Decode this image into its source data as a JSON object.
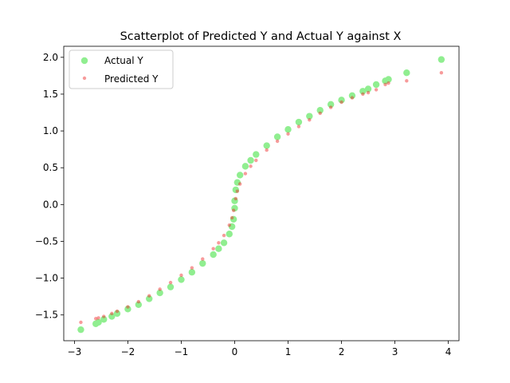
{
  "chart_data": {
    "type": "scatter",
    "title": "Scatterplot of Predicted Y and Actual Y against X",
    "xlabel": "",
    "ylabel": "",
    "xlim": [
      -3.2,
      4.2
    ],
    "ylim": [
      -1.85,
      2.15
    ],
    "xticks": [
      -3,
      -2,
      -1,
      0,
      1,
      2,
      3,
      4
    ],
    "yticks": [
      -1.5,
      -1.0,
      -0.5,
      0.0,
      0.5,
      1.0,
      1.5,
      2.0
    ],
    "xtick_labels": [
      "−3",
      "−2",
      "−1",
      "0",
      "1",
      "2",
      "3",
      "4"
    ],
    "ytick_labels": [
      "−1.5",
      "−1.0",
      "−0.5",
      "0.0",
      "0.5",
      "1.0",
      "1.5",
      "2.0"
    ],
    "grid": false,
    "legend_position": "top-left",
    "series": [
      {
        "name": "Actual Y",
        "color": "#90EE90",
        "marker": "large",
        "points": [
          [
            -2.88,
            -1.7
          ],
          [
            -2.6,
            -1.62
          ],
          [
            -2.55,
            -1.6
          ],
          [
            -2.45,
            -1.56
          ],
          [
            -2.3,
            -1.52
          ],
          [
            -2.2,
            -1.48
          ],
          [
            -2.0,
            -1.42
          ],
          [
            -1.8,
            -1.36
          ],
          [
            -1.6,
            -1.28
          ],
          [
            -1.4,
            -1.2
          ],
          [
            -1.2,
            -1.12
          ],
          [
            -1.0,
            -1.02
          ],
          [
            -0.8,
            -0.92
          ],
          [
            -0.6,
            -0.8
          ],
          [
            -0.4,
            -0.68
          ],
          [
            -0.3,
            -0.6
          ],
          [
            -0.2,
            -0.52
          ],
          [
            -0.1,
            -0.4
          ],
          [
            -0.05,
            -0.3
          ],
          [
            -0.02,
            -0.2
          ],
          [
            0.0,
            -0.05
          ],
          [
            0.0,
            0.05
          ],
          [
            0.02,
            0.2
          ],
          [
            0.05,
            0.3
          ],
          [
            0.1,
            0.4
          ],
          [
            0.2,
            0.52
          ],
          [
            0.3,
            0.6
          ],
          [
            0.4,
            0.68
          ],
          [
            0.6,
            0.8
          ],
          [
            0.8,
            0.92
          ],
          [
            1.0,
            1.02
          ],
          [
            1.2,
            1.12
          ],
          [
            1.4,
            1.2
          ],
          [
            1.6,
            1.28
          ],
          [
            1.8,
            1.36
          ],
          [
            2.0,
            1.42
          ],
          [
            2.2,
            1.48
          ],
          [
            2.4,
            1.54
          ],
          [
            2.5,
            1.57
          ],
          [
            2.65,
            1.63
          ],
          [
            2.82,
            1.68
          ],
          [
            2.88,
            1.7
          ],
          [
            3.22,
            1.79
          ],
          [
            3.87,
            1.97
          ]
        ]
      },
      {
        "name": "Predicted Y",
        "color": "#EE2222",
        "marker": "small",
        "points": [
          [
            -2.88,
            -1.6
          ],
          [
            -2.6,
            -1.55
          ],
          [
            -2.55,
            -1.54
          ],
          [
            -2.45,
            -1.52
          ],
          [
            -2.3,
            -1.48
          ],
          [
            -2.2,
            -1.45
          ],
          [
            -2.0,
            -1.39
          ],
          [
            -1.8,
            -1.32
          ],
          [
            -1.6,
            -1.24
          ],
          [
            -1.4,
            -1.15
          ],
          [
            -1.2,
            -1.06
          ],
          [
            -1.0,
            -0.96
          ],
          [
            -0.8,
            -0.86
          ],
          [
            -0.6,
            -0.74
          ],
          [
            -0.4,
            -0.6
          ],
          [
            -0.3,
            -0.52
          ],
          [
            -0.2,
            -0.42
          ],
          [
            -0.1,
            -0.28
          ],
          [
            -0.05,
            -0.18
          ],
          [
            -0.02,
            -0.08
          ],
          [
            0.02,
            0.08
          ],
          [
            0.05,
            0.18
          ],
          [
            0.1,
            0.28
          ],
          [
            0.2,
            0.42
          ],
          [
            0.3,
            0.52
          ],
          [
            0.4,
            0.6
          ],
          [
            0.6,
            0.74
          ],
          [
            0.8,
            0.86
          ],
          [
            1.0,
            0.96
          ],
          [
            1.2,
            1.06
          ],
          [
            1.4,
            1.15
          ],
          [
            1.6,
            1.24
          ],
          [
            1.8,
            1.32
          ],
          [
            2.0,
            1.39
          ],
          [
            2.2,
            1.45
          ],
          [
            2.4,
            1.5
          ],
          [
            2.5,
            1.52
          ],
          [
            2.65,
            1.56
          ],
          [
            2.82,
            1.63
          ],
          [
            2.88,
            1.65
          ],
          [
            3.22,
            1.68
          ],
          [
            3.87,
            1.79
          ]
        ]
      }
    ]
  }
}
